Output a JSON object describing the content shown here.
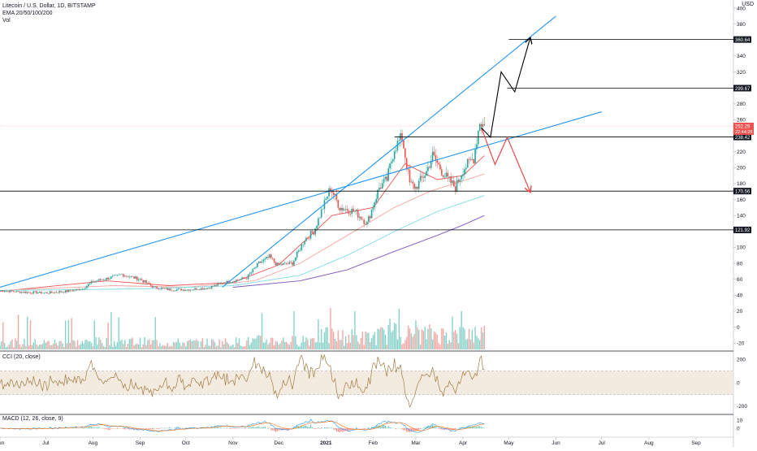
{
  "header": {
    "symbol_title": "Litecoin / U.S. Dollar, 1D, BITSTAMP",
    "ema_legend": "EMA 20/50/100/200",
    "vol_legend": "Vol",
    "currency": "USD"
  },
  "cci_label": "CCI (20, close)",
  "macd_label": "MACD (12, 26, close, 9)",
  "colors": {
    "up": "#26a69a",
    "down": "#ef5350",
    "vol_up": "#5fc3b6",
    "vol_down": "#f08a86",
    "ema20": "#ef5350",
    "ema50": "#f7a59f",
    "ema100": "#80deea",
    "ema200": "#7e57c2",
    "channel": "#2196f3",
    "bull_path": "#000000",
    "bear_path": "#ef3b3b",
    "cci_line": "#a17b41",
    "cci_band": "#f3ebe0",
    "macd_line": "#2196f3",
    "signal_line": "#ff6d00",
    "level_line": "#000000",
    "price_line": "#ef5350"
  },
  "chart_data": {
    "type": "candlestick",
    "price_axis": {
      "ylim": [
        -30,
        400
      ],
      "ticks": [
        -20,
        0,
        20,
        40,
        60,
        80,
        100,
        120,
        140,
        160,
        180,
        200,
        220,
        240,
        260,
        280,
        300,
        320,
        340,
        360,
        380,
        400
      ]
    },
    "time_axis": {
      "ticks": [
        {
          "label": "Jun",
          "date": "2020-06-01"
        },
        {
          "label": "Jul",
          "date": "2020-07-01"
        },
        {
          "label": "Aug",
          "date": "2020-08-01"
        },
        {
          "label": "Sep",
          "date": "2020-09-01"
        },
        {
          "label": "Oct",
          "date": "2020-10-01"
        },
        {
          "label": "Nov",
          "date": "2020-11-01"
        },
        {
          "label": "Dec",
          "date": "2020-12-01"
        },
        {
          "label": "2021",
          "date": "2021-01-01"
        },
        {
          "label": "Feb",
          "date": "2021-02-01"
        },
        {
          "label": "Mar",
          "date": "2021-03-01"
        },
        {
          "label": "Apr",
          "date": "2021-04-01"
        },
        {
          "label": "May",
          "date": "2021-05-01"
        },
        {
          "label": "Jun",
          "date": "2021-06-01"
        },
        {
          "label": "Jul",
          "date": "2021-07-01"
        },
        {
          "label": "Aug",
          "date": "2021-08-01"
        },
        {
          "label": "Sep",
          "date": "2021-09-01"
        }
      ],
      "start": "2020-06-01",
      "end": "2021-09-25"
    },
    "close_path": [
      [
        "2020-06-01",
        46
      ],
      [
        "2020-06-15",
        44
      ],
      [
        "2020-07-01",
        43
      ],
      [
        "2020-07-15",
        45
      ],
      [
        "2020-07-25",
        48
      ],
      [
        "2020-08-01",
        57
      ],
      [
        "2020-08-15",
        63
      ],
      [
        "2020-08-20",
        66
      ],
      [
        "2020-09-01",
        60
      ],
      [
        "2020-09-10",
        50
      ],
      [
        "2020-09-20",
        47
      ],
      [
        "2020-10-01",
        47
      ],
      [
        "2020-10-15",
        49
      ],
      [
        "2020-10-25",
        55
      ],
      [
        "2020-11-01",
        58
      ],
      [
        "2020-11-10",
        62
      ],
      [
        "2020-11-18",
        80
      ],
      [
        "2020-11-25",
        88
      ],
      [
        "2020-11-30",
        78
      ],
      [
        "2020-12-10",
        80
      ],
      [
        "2020-12-18",
        110
      ],
      [
        "2020-12-24",
        120
      ],
      [
        "2020-12-28",
        140
      ],
      [
        "2021-01-04",
        175
      ],
      [
        "2021-01-10",
        150
      ],
      [
        "2021-01-20",
        145
      ],
      [
        "2021-01-28",
        130
      ],
      [
        "2021-02-05",
        175
      ],
      [
        "2021-02-10",
        185
      ],
      [
        "2021-02-15",
        225
      ],
      [
        "2021-02-20",
        238
      ],
      [
        "2021-02-25",
        180
      ],
      [
        "2021-03-01",
        175
      ],
      [
        "2021-03-08",
        195
      ],
      [
        "2021-03-12",
        215
      ],
      [
        "2021-03-20",
        190
      ],
      [
        "2021-03-27",
        175
      ],
      [
        "2021-04-01",
        198
      ],
      [
        "2021-04-08",
        212
      ],
      [
        "2021-04-12",
        258
      ],
      [
        "2021-04-15",
        252
      ]
    ],
    "ema_series": [
      {
        "period": 20,
        "points": [
          [
            "2020-06-01",
            45
          ],
          [
            "2020-08-10",
            58
          ],
          [
            "2020-09-20",
            52
          ],
          [
            "2020-11-01",
            56
          ],
          [
            "2020-12-01",
            78
          ],
          [
            "2021-01-05",
            140
          ],
          [
            "2021-02-01",
            150
          ],
          [
            "2021-02-22",
            205
          ],
          [
            "2021-03-15",
            185
          ],
          [
            "2021-04-01",
            190
          ],
          [
            "2021-04-15",
            215
          ]
        ]
      },
      {
        "period": 50,
        "points": [
          [
            "2020-06-01",
            46
          ],
          [
            "2020-08-15",
            52
          ],
          [
            "2020-10-01",
            50
          ],
          [
            "2020-11-15",
            58
          ],
          [
            "2020-12-15",
            80
          ],
          [
            "2021-01-15",
            115
          ],
          [
            "2021-02-15",
            150
          ],
          [
            "2021-03-10",
            170
          ],
          [
            "2021-04-15",
            192
          ]
        ]
      },
      {
        "period": 100,
        "points": [
          [
            "2020-06-01",
            46
          ],
          [
            "2020-09-01",
            48
          ],
          [
            "2020-11-01",
            52
          ],
          [
            "2020-12-15",
            65
          ],
          [
            "2021-01-15",
            90
          ],
          [
            "2021-02-15",
            120
          ],
          [
            "2021-03-15",
            145
          ],
          [
            "2021-04-15",
            165
          ]
        ]
      },
      {
        "period": 200,
        "points": [
          [
            "2020-11-01",
            50
          ],
          [
            "2020-12-15",
            58
          ],
          [
            "2021-01-15",
            72
          ],
          [
            "2021-02-15",
            95
          ],
          [
            "2021-03-15",
            115
          ],
          [
            "2021-04-01",
            128
          ],
          [
            "2021-04-15",
            140
          ]
        ]
      }
    ],
    "last_price": {
      "value": 252.29,
      "label": "252.29",
      "countdown": "22:44:28"
    },
    "horizontal_levels": [
      {
        "value": 360.64,
        "label": "360.64",
        "from": "2021-05-01"
      },
      {
        "value": 299.67,
        "label": "299.67",
        "from": "2021-04-30"
      },
      {
        "value": 238.42,
        "label": "238.42",
        "from": "2021-02-15"
      },
      {
        "value": 170.56,
        "label": "170.56",
        "from": "2020-06-01"
      },
      {
        "value": 121.92,
        "label": "121.92",
        "from": "2020-06-01"
      }
    ],
    "trendlines": [
      {
        "name": "upper-channel",
        "from": [
          "2020-10-25",
          50
        ],
        "to": [
          "2021-06-01",
          390
        ]
      },
      {
        "name": "lower-channel",
        "from": [
          "2020-06-01",
          50
        ],
        "to": [
          "2021-07-01",
          270
        ]
      }
    ],
    "bullish_path": [
      [
        "2021-04-13",
        250
      ],
      [
        "2021-04-19",
        238
      ],
      [
        "2021-04-26",
        320
      ],
      [
        "2021-05-05",
        295
      ],
      [
        "2021-05-15",
        362
      ]
    ],
    "bearish_path": [
      [
        "2021-04-13",
        250
      ],
      [
        "2021-04-22",
        204
      ],
      [
        "2021-04-30",
        238
      ],
      [
        "2021-05-15",
        170
      ]
    ],
    "cci": {
      "axis_ticks": [
        200,
        0,
        -200
      ],
      "band": [
        100,
        -100
      ]
    },
    "macd": {
      "axis_ticks": [
        10,
        0
      ]
    }
  }
}
